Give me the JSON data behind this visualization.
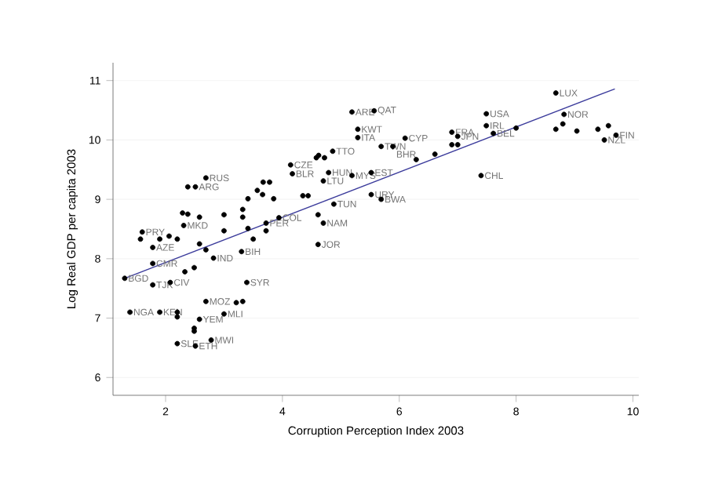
{
  "chart_data": {
    "type": "scatter",
    "xlabel": "Corruption Perception Index 2003",
    "ylabel": "Log Real GDP per capita 2003",
    "xlim": [
      1.1,
      10.1
    ],
    "ylim": [
      5.7,
      11.3
    ],
    "xticks": [
      2,
      4,
      6,
      8,
      10
    ],
    "yticks": [
      6,
      7,
      8,
      9,
      10,
      11
    ],
    "grid": "y",
    "series": [
      {
        "color": "#000000",
        "marker": "circle",
        "x": [
          1.3,
          1.39,
          1.9,
          1.78,
          2.08,
          1.78,
          1.6,
          1.78,
          1.57,
          1.9,
          2.06,
          2.2,
          2.31,
          2.29,
          2.38,
          2.58,
          2.2,
          2.2,
          2.58,
          2.49,
          2.49,
          2.2,
          2.78,
          2.51,
          2.69,
          3.0,
          3.21,
          3.32,
          3.39,
          3.3,
          2.82,
          2.33,
          2.49,
          2.58,
          2.69,
          3.0,
          3.41,
          3.5,
          3.72,
          3.72,
          3.94,
          3.0,
          3.32,
          3.32,
          3.41,
          3.57,
          3.66,
          3.67,
          3.78,
          3.85,
          4.35,
          4.44,
          4.61,
          4.7,
          4.61,
          4.88,
          2.69,
          2.38,
          2.51,
          4.14,
          4.17,
          4.79,
          4.7,
          5.19,
          4.86,
          4.62,
          4.58,
          4.72,
          5.19,
          5.57,
          5.29,
          5.29,
          6.1,
          5.69,
          5.89,
          6.29,
          6.61,
          7.4,
          5.52,
          5.52,
          5.69,
          8.68,
          7.49,
          8.82,
          7.49,
          7.61,
          8.0,
          6.9,
          7.0,
          6.9,
          7.0,
          8.8,
          8.68,
          9.04,
          9.4,
          9.58,
          9.71,
          9.51
        ],
        "values": [
          7.67,
          7.1,
          7.1,
          7.56,
          7.6,
          8.19,
          8.45,
          7.92,
          8.33,
          8.33,
          8.38,
          8.33,
          8.56,
          8.77,
          8.75,
          8.7,
          7.1,
          7.02,
          6.98,
          6.83,
          6.78,
          6.57,
          6.63,
          6.53,
          7.28,
          7.07,
          7.26,
          7.28,
          7.6,
          8.12,
          8.01,
          7.78,
          7.85,
          8.25,
          8.15,
          8.47,
          8.51,
          8.33,
          8.47,
          8.6,
          8.69,
          8.74,
          8.83,
          8.7,
          9.01,
          9.15,
          9.08,
          9.29,
          9.29,
          9.01,
          9.06,
          9.06,
          8.74,
          8.6,
          8.24,
          8.92,
          9.36,
          9.21,
          9.21,
          9.58,
          9.43,
          9.45,
          9.31,
          9.4,
          9.81,
          9.74,
          9.7,
          9.7,
          10.47,
          10.49,
          10.18,
          10.04,
          10.03,
          9.89,
          9.89,
          9.67,
          9.76,
          9.4,
          9.45,
          9.08,
          9.0,
          10.79,
          10.44,
          10.43,
          10.24,
          10.11,
          10.2,
          10.13,
          10.06,
          9.92,
          9.92,
          10.27,
          10.18,
          10.15,
          10.18,
          10.24,
          10.08,
          10.0
        ]
      },
      {
        "type": "line",
        "color": "#3c3c9c",
        "line_style": "solid",
        "marker": "none",
        "x": [
          1.3,
          9.69
        ],
        "values": [
          7.67,
          10.86
        ]
      }
    ],
    "annotations": [
      {
        "text": "BGD",
        "x": 1.3,
        "y": 7.67
      },
      {
        "text": "NGA",
        "x": 1.39,
        "y": 7.1
      },
      {
        "text": "KEN",
        "x": 1.9,
        "y": 7.1
      },
      {
        "text": "TJK",
        "x": 1.78,
        "y": 7.56
      },
      {
        "text": "CIV",
        "x": 2.08,
        "y": 7.6
      },
      {
        "text": "AZE",
        "x": 1.78,
        "y": 8.19
      },
      {
        "text": "PRY",
        "x": 1.6,
        "y": 8.45
      },
      {
        "text": "CMR",
        "x": 1.78,
        "y": 7.92
      },
      {
        "text": "MKD",
        "x": 2.31,
        "y": 8.56
      },
      {
        "text": "YEM",
        "x": 2.58,
        "y": 6.98
      },
      {
        "text": "SLE",
        "x": 2.2,
        "y": 6.57
      },
      {
        "text": "MWI",
        "x": 2.78,
        "y": 6.63
      },
      {
        "text": "ETH",
        "x": 2.51,
        "y": 6.53
      },
      {
        "text": "MOZ",
        "x": 2.69,
        "y": 7.28
      },
      {
        "text": "MLI",
        "x": 3.0,
        "y": 7.07
      },
      {
        "text": "SYR",
        "x": 3.39,
        "y": 7.6
      },
      {
        "text": "BIH",
        "x": 3.3,
        "y": 8.12
      },
      {
        "text": "IND",
        "x": 2.82,
        "y": 8.01
      },
      {
        "text": "PER",
        "x": 3.72,
        "y": 8.6
      },
      {
        "text": "COL",
        "x": 3.94,
        "y": 8.69
      },
      {
        "text": "NAM",
        "x": 4.7,
        "y": 8.6
      },
      {
        "text": "JOR",
        "x": 4.61,
        "y": 8.24
      },
      {
        "text": "TUN",
        "x": 4.88,
        "y": 8.92
      },
      {
        "text": "RUS",
        "x": 2.69,
        "y": 9.36
      },
      {
        "text": "ARG",
        "x": 2.51,
        "y": 9.21
      },
      {
        "text": "CZE",
        "x": 4.14,
        "y": 9.58
      },
      {
        "text": "BLR",
        "x": 4.17,
        "y": 9.43
      },
      {
        "text": "HUN",
        "x": 4.79,
        "y": 9.45
      },
      {
        "text": "LTU",
        "x": 4.7,
        "y": 9.31
      },
      {
        "text": "MYS",
        "x": 5.19,
        "y": 9.4
      },
      {
        "text": "TTO",
        "x": 4.86,
        "y": 9.81
      },
      {
        "text": "ARE",
        "x": 5.19,
        "y": 10.47
      },
      {
        "text": "QAT",
        "x": 5.57,
        "y": 10.49
      },
      {
        "text": "KWT",
        "x": 5.29,
        "y": 10.18
      },
      {
        "text": "ITA",
        "x": 5.29,
        "y": 10.04
      },
      {
        "text": "CYP",
        "x": 6.1,
        "y": 10.03
      },
      {
        "text": "TWN",
        "x": 5.69,
        "y": 9.89
      },
      {
        "text": "BHR",
        "x": 5.89,
        "y": 9.89
      },
      {
        "text": "CHL",
        "x": 7.4,
        "y": 9.4
      },
      {
        "text": "EST",
        "x": 5.52,
        "y": 9.45
      },
      {
        "text": "URY",
        "x": 5.52,
        "y": 9.08
      },
      {
        "text": "BWA",
        "x": 5.69,
        "y": 9.0
      },
      {
        "text": "LUX",
        "x": 8.68,
        "y": 10.79
      },
      {
        "text": "USA",
        "x": 7.49,
        "y": 10.44
      },
      {
        "text": "NOR",
        "x": 8.82,
        "y": 10.43
      },
      {
        "text": "IRL",
        "x": 7.49,
        "y": 10.24
      },
      {
        "text": "BEL",
        "x": 7.61,
        "y": 10.11
      },
      {
        "text": "FRA",
        "x": 6.9,
        "y": 10.13
      },
      {
        "text": "JPN",
        "x": 7.0,
        "y": 10.06
      },
      {
        "text": "FIN",
        "x": 9.71,
        "y": 10.08
      },
      {
        "text": "NZL",
        "x": 9.51,
        "y": 10.0
      }
    ]
  }
}
